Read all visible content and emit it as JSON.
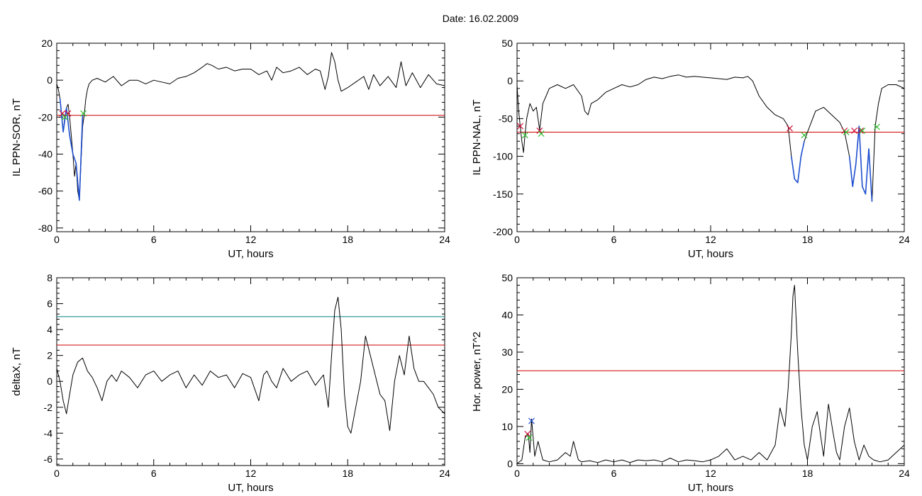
{
  "figure": {
    "title": "Date:  16.02.2009"
  },
  "colors": {
    "trace": "#000000",
    "threshold": "#d00000",
    "secondary_threshold": "#008080",
    "event": "#1f4fd0",
    "marker_start": "#d0103a",
    "marker_end": "#30c030"
  },
  "chart_data": [
    {
      "type": "line",
      "xlabel": "UT, hours",
      "ylabel": "IL PPN-SOR, nT",
      "xlim": [
        0,
        24
      ],
      "ylim": [
        -82,
        20
      ],
      "xticks": [
        0,
        6,
        12,
        18,
        24
      ],
      "yticks": [
        20,
        0,
        -20,
        -40,
        -60,
        -80
      ],
      "thresholds": [
        {
          "name": "threshold",
          "value": -19,
          "color": "#d00000"
        }
      ],
      "series": [
        {
          "x": [
            0,
            0.1,
            0.2,
            0.3,
            0.4,
            0.5,
            0.6,
            0.7,
            0.8,
            0.9,
            1.0,
            1.1,
            1.2,
            1.3,
            1.4,
            1.5,
            1.6,
            1.7,
            1.8,
            1.9,
            2.0,
            2.2,
            2.5,
            3,
            3.5,
            4,
            4.5,
            5,
            5.5,
            6,
            6.5,
            7,
            7.5,
            8,
            8.5,
            9,
            9.3,
            9.6,
            10,
            10.5,
            11,
            11.5,
            12,
            12.5,
            13,
            13.3,
            13.6,
            14,
            14.5,
            15,
            15.5,
            16,
            16.3,
            16.6,
            16.8,
            17,
            17.2,
            17.4,
            17.6,
            17.8,
            18,
            18.5,
            19,
            19.3,
            19.6,
            20,
            20.5,
            21,
            21.3,
            21.6,
            22,
            22.5,
            23,
            23.5,
            24
          ],
          "y": [
            -2,
            -5,
            -10,
            -18,
            -28,
            -20,
            -15,
            -13,
            -20,
            -30,
            -40,
            -52,
            -45,
            -60,
            -65,
            -45,
            -25,
            -19,
            -10,
            -5,
            -2,
            0,
            1,
            -1,
            2,
            -3,
            0,
            0,
            -2,
            0,
            -1,
            -2,
            1,
            2,
            4,
            7,
            9,
            8,
            6,
            7,
            5,
            6,
            6,
            3,
            5,
            0,
            7,
            4,
            5,
            7,
            3,
            6,
            5,
            -5,
            2,
            15,
            10,
            0,
            -6,
            -5,
            -4,
            -1,
            2,
            -5,
            3,
            -3,
            2,
            -4,
            10,
            -3,
            4,
            -4,
            3,
            -2,
            -3
          ]
        },
        {
          "name": "event",
          "x": [
            0.2,
            0.4,
            0.6,
            0.8,
            1.0,
            1.2,
            1.4,
            1.6
          ],
          "y": [
            -10,
            -28,
            -15,
            -30,
            -40,
            -45,
            -65,
            -19
          ]
        }
      ],
      "markers": [
        {
          "x": 0.35,
          "y": -18,
          "color": "#d0103a"
        },
        {
          "x": 0.7,
          "y": -18,
          "color": "#d0103a"
        },
        {
          "x": 0.5,
          "y": -20,
          "color": "#30c030"
        },
        {
          "x": 1.65,
          "y": -18,
          "color": "#30c030"
        }
      ]
    },
    {
      "type": "line",
      "xlabel": "UT, hours",
      "ylabel": "IL PPN-NAL, nT",
      "xlim": [
        0,
        24
      ],
      "ylim": [
        -200,
        50
      ],
      "xticks": [
        0,
        6,
        12,
        18,
        24
      ],
      "yticks": [
        50,
        0,
        -50,
        -100,
        -150,
        -200
      ],
      "thresholds": [
        {
          "name": "threshold",
          "value": -68,
          "color": "#d00000"
        }
      ],
      "series": [
        {
          "x": [
            0,
            0.1,
            0.2,
            0.3,
            0.4,
            0.5,
            0.6,
            0.8,
            1.0,
            1.2,
            1.4,
            1.6,
            1.8,
            2.0,
            2.5,
            3,
            3.5,
            4,
            4.2,
            4.4,
            4.6,
            5,
            5.5,
            6,
            6.5,
            7,
            7.5,
            8,
            8.5,
            9,
            9.5,
            10,
            10.5,
            11,
            11.5,
            12,
            12.5,
            13,
            13.5,
            14,
            14.3,
            14.6,
            15,
            15.5,
            16,
            16.5,
            16.8,
            17,
            17.2,
            17.4,
            17.6,
            17.8,
            18,
            18.5,
            19,
            19.5,
            20,
            20.3,
            20.6,
            20.8,
            21,
            21.2,
            21.4,
            21.6,
            21.8,
            22,
            22.2,
            22.4,
            22.6,
            23,
            23.5,
            24
          ],
          "y": [
            -5,
            -40,
            -60,
            -80,
            -95,
            -70,
            -50,
            -30,
            -40,
            -35,
            -65,
            -30,
            -20,
            -10,
            -5,
            -10,
            -5,
            -20,
            -40,
            -45,
            -30,
            -25,
            -15,
            -10,
            -5,
            -8,
            -5,
            2,
            5,
            3,
            6,
            8,
            5,
            6,
            5,
            4,
            3,
            2,
            5,
            4,
            6,
            0,
            -20,
            -35,
            -45,
            -50,
            -60,
            -100,
            -130,
            -135,
            -100,
            -80,
            -68,
            -40,
            -35,
            -45,
            -55,
            -68,
            -100,
            -140,
            -110,
            -60,
            -140,
            -150,
            -90,
            -160,
            -60,
            -30,
            -10,
            -5,
            -5,
            -10
          ]
        },
        {
          "name": "event",
          "x": [
            17.0,
            17.2,
            17.4,
            17.6,
            17.8
          ],
          "y": [
            -100,
            -130,
            -135,
            -100,
            -80
          ]
        },
        {
          "name": "event",
          "x": [
            20.6,
            20.8,
            21.0,
            21.2,
            21.4,
            21.6,
            21.8,
            22.0
          ],
          "y": [
            -100,
            -140,
            -110,
            -60,
            -140,
            -150,
            -90,
            -160
          ]
        }
      ],
      "markers": [
        {
          "x": 0.2,
          "y": -60,
          "color": "#d0103a"
        },
        {
          "x": 1.4,
          "y": -66,
          "color": "#d0103a"
        },
        {
          "x": 16.9,
          "y": -63,
          "color": "#d0103a"
        },
        {
          "x": 20.3,
          "y": -66,
          "color": "#d0103a"
        },
        {
          "x": 20.9,
          "y": -66,
          "color": "#d0103a"
        },
        {
          "x": 21.3,
          "y": -66,
          "color": "#d0103a"
        },
        {
          "x": 0.5,
          "y": -72,
          "color": "#30c030"
        },
        {
          "x": 1.5,
          "y": -70,
          "color": "#30c030"
        },
        {
          "x": 17.8,
          "y": -72,
          "color": "#30c030"
        },
        {
          "x": 20.4,
          "y": -68,
          "color": "#30c030"
        },
        {
          "x": 21.4,
          "y": -66,
          "color": "#30c030"
        },
        {
          "x": 22.3,
          "y": -61,
          "color": "#30c030"
        }
      ]
    },
    {
      "type": "line",
      "xlabel": "UT, hours",
      "ylabel": "deltaX, nT",
      "xlim": [
        0,
        24
      ],
      "ylim": [
        -6.5,
        8
      ],
      "xticks": [
        0,
        6,
        12,
        18,
        24
      ],
      "yticks": [
        8,
        6,
        4,
        2,
        0,
        -2,
        -4,
        -6
      ],
      "thresholds": [
        {
          "name": "threshold",
          "value": 2.8,
          "color": "#d00000"
        },
        {
          "name": "secondary_threshold",
          "value": 5.0,
          "color": "#008080"
        }
      ],
      "series": [
        {
          "x": [
            0,
            0.2,
            0.4,
            0.6,
            0.8,
            1.0,
            1.3,
            1.6,
            1.9,
            2.2,
            2.5,
            2.8,
            3.1,
            3.4,
            3.7,
            4,
            4.5,
            5,
            5.5,
            6,
            6.5,
            7,
            7.5,
            8,
            8.5,
            9,
            9.5,
            10,
            10.5,
            11,
            11.5,
            12,
            12.5,
            12.8,
            13,
            13.3,
            13.6,
            14,
            14.5,
            15,
            15.5,
            16,
            16.5,
            16.8,
            17,
            17.2,
            17.4,
            17.6,
            17.8,
            18,
            18.2,
            18.5,
            18.8,
            19.1,
            19.4,
            19.7,
            20,
            20.3,
            20.6,
            20.9,
            21.2,
            21.5,
            21.8,
            22.1,
            22.4,
            22.7,
            23,
            23.3,
            23.6,
            24
          ],
          "y": [
            1,
            0,
            -1.5,
            -2.5,
            -1,
            0.5,
            1.5,
            1.8,
            0.8,
            0.3,
            -0.5,
            -1.5,
            0,
            0.5,
            0,
            0.8,
            0.3,
            -0.5,
            0.5,
            0.8,
            0,
            0.5,
            0.8,
            -0.5,
            0.5,
            -0.3,
            0.8,
            0.3,
            0.5,
            -0.5,
            0.6,
            0.3,
            -1.5,
            0.5,
            0.8,
            0,
            -0.5,
            1,
            0,
            0.5,
            0.8,
            -0.3,
            0.5,
            -2,
            2,
            5.5,
            6.5,
            4,
            -1,
            -3.5,
            -4,
            -2,
            0,
            3.5,
            2,
            0.5,
            -1,
            -1.5,
            -3.8,
            0,
            2,
            0.5,
            3.5,
            1,
            0,
            0,
            -0.5,
            -1,
            -2,
            -2.5
          ]
        }
      ]
    },
    {
      "type": "line",
      "xlabel": "UT, hours",
      "ylabel": "Hor. power, nT^2",
      "xlim": [
        0,
        24
      ],
      "ylim": [
        -0.5,
        50
      ],
      "xticks": [
        0,
        6,
        12,
        18,
        24
      ],
      "yticks": [
        50,
        40,
        30,
        20,
        10,
        0
      ],
      "thresholds": [
        {
          "name": "threshold",
          "value": 25,
          "color": "#d00000"
        }
      ],
      "series": [
        {
          "x": [
            0,
            0.3,
            0.5,
            0.7,
            0.8,
            0.9,
            1.1,
            1.3,
            1.6,
            2,
            2.5,
            3,
            3.3,
            3.5,
            3.8,
            4,
            4.5,
            5,
            5.5,
            6,
            6.5,
            7,
            7.5,
            8,
            8.5,
            9,
            9.5,
            10,
            10.5,
            11,
            11.5,
            12,
            12.5,
            13,
            13.5,
            14,
            14.5,
            15,
            15.5,
            16,
            16.3,
            16.6,
            16.8,
            17,
            17.1,
            17.2,
            17.4,
            17.6,
            17.8,
            18,
            18.3,
            18.6,
            18.8,
            19,
            19.3,
            19.6,
            19.8,
            20,
            20.3,
            20.6,
            20.9,
            21.2,
            21.5,
            21.8,
            22.1,
            22.5,
            23,
            23.5,
            24
          ],
          "y": [
            0,
            1,
            7,
            8,
            3,
            12,
            2,
            6,
            1,
            0.5,
            1,
            3,
            2,
            6,
            1,
            0.5,
            0.8,
            0.3,
            1,
            0.5,
            1,
            0.3,
            1,
            0.8,
            1,
            0.5,
            1.5,
            0.5,
            1,
            0.8,
            0.5,
            1,
            2,
            4,
            1,
            2,
            1,
            3,
            1,
            5,
            15,
            10,
            20,
            35,
            45,
            48,
            30,
            15,
            5,
            1,
            10,
            14,
            8,
            2,
            16,
            8,
            3,
            1,
            10,
            15,
            6,
            1,
            5,
            2,
            1,
            0.5,
            1,
            3,
            5
          ]
        }
      ],
      "markers": [
        {
          "x": 0.65,
          "y": 8,
          "color": "#d0103a"
        },
        {
          "x": 0.9,
          "y": 11.5,
          "color": "#1f4fd0"
        },
        {
          "x": 0.75,
          "y": 7,
          "color": "#30c030"
        }
      ]
    }
  ]
}
